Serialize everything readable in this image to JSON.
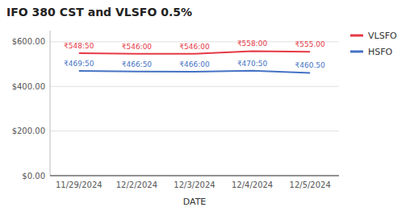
{
  "chart_data": {
    "type": "line",
    "title": "IFO 380 CST and VLSFO 0.5%",
    "x_label": "DATE",
    "categories": [
      "11/29/2024",
      "12/2/2024",
      "12/3/2024",
      "12/4/2024",
      "12/5/2024"
    ],
    "series": [
      {
        "name": "VLSFO",
        "color": "#e63946",
        "values": [
          548.5,
          546.0,
          546.0,
          558.0,
          555.0
        ],
        "value_labels": [
          "₹548:50",
          "₹546:00",
          "₹546:00",
          "₹558:00",
          "₹555.00"
        ]
      },
      {
        "name": "HSFO",
        "color": "#4472c4",
        "values": [
          469.5,
          466.5,
          466.0,
          470.5,
          460.5
        ],
        "value_labels": [
          "₹469:50",
          "₹466:50",
          "₹466:00",
          "₹470:50",
          "₹460.50"
        ]
      }
    ],
    "ylim": [
      0,
      650
    ],
    "yticks": [
      {
        "value": 0,
        "label": "$0.00"
      },
      {
        "value": 200,
        "label": "$200.00"
      },
      {
        "value": 400,
        "label": "$400.00"
      },
      {
        "value": 600,
        "label": "$600.00"
      }
    ],
    "grid": true,
    "legend": "upper right",
    "data_labels": true
  }
}
